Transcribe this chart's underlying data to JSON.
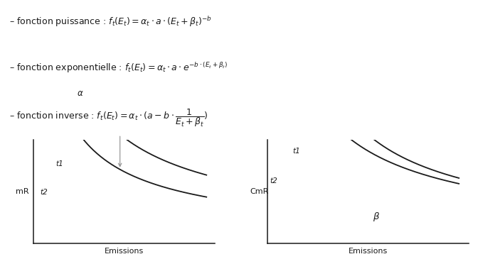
{
  "bg_color": "#ffffff",
  "text_color": "#1a1a1a",
  "line_color": "#1a1a1a",
  "arrow_color": "#999999",
  "formula1": "– fonction puissance : $f_t(E_t) = \\alpha_t \\cdot a \\cdot (E_t + \\beta_t)^{-b}$",
  "formula2": "– fonction exponentielle : $f_t(E_t) = \\alpha_t \\cdot a \\cdot e^{-b \\cdot (E_t+\\beta_t)}$",
  "formula3": "– fonction inverse : $f_t(E_t) = \\alpha_t \\cdot (a - b \\cdot \\dfrac{1}{E_t+\\beta_t})$",
  "left_ylabel": "mR",
  "right_ylabel": "CmR",
  "xlabel": "Emissions",
  "label_t1": "t1",
  "label_t2": "t2",
  "label_alpha": "$\\alpha$",
  "label_beta": "$\\beta$",
  "formula_fontsize": 9.0,
  "axis_label_fontsize": 8.0,
  "curve_label_fontsize": 7.5
}
